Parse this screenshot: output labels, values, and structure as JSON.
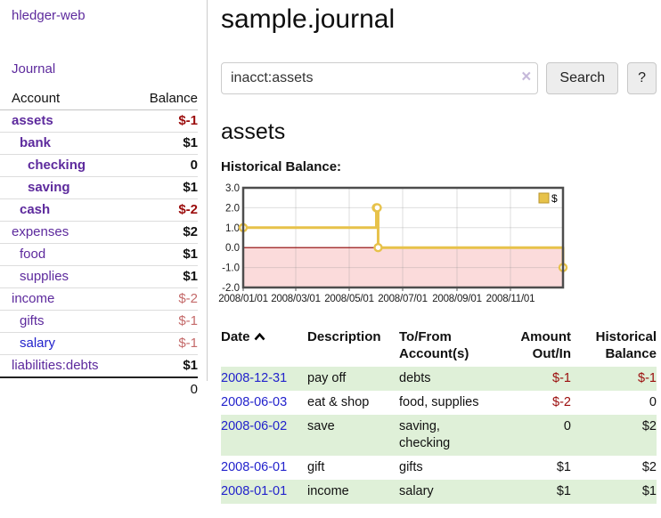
{
  "sidebar": {
    "brand": "hledger-web",
    "journal_label": "Journal",
    "accounts_table": {
      "headers": {
        "account": "Account",
        "balance": "Balance"
      },
      "rows": [
        {
          "name": "assets",
          "depth": 1,
          "bold": true,
          "balance": "$-1",
          "balance_style": "neg",
          "link": "purple"
        },
        {
          "name": "bank",
          "depth": 2,
          "bold": true,
          "balance": "$1",
          "balance_style": "",
          "link": "purple"
        },
        {
          "name": "checking",
          "depth": 3,
          "bold": true,
          "balance": "0",
          "balance_style": "",
          "link": "purple"
        },
        {
          "name": "saving",
          "depth": 3,
          "bold": true,
          "balance": "$1",
          "balance_style": "",
          "link": "purple"
        },
        {
          "name": "cash",
          "depth": 2,
          "bold": true,
          "balance": "$-2",
          "balance_style": "neg",
          "link": "purple"
        },
        {
          "name": "expenses",
          "depth": 1,
          "bold": false,
          "balance": "$2",
          "balance_style": "",
          "link": "purple"
        },
        {
          "name": "food",
          "depth": 2,
          "bold": false,
          "balance": "$1",
          "balance_style": "",
          "link": "purple"
        },
        {
          "name": "supplies",
          "depth": 2,
          "bold": false,
          "balance": "$1",
          "balance_style": "",
          "link": "purple"
        },
        {
          "name": "income",
          "depth": 1,
          "bold": false,
          "balance": "$-2",
          "balance_style": "neg-dim",
          "link": "purple"
        },
        {
          "name": "gifts",
          "depth": 2,
          "bold": false,
          "balance": "$-1",
          "balance_style": "neg-dim",
          "link": "purple"
        },
        {
          "name": "salary",
          "depth": 2,
          "bold": false,
          "balance": "$-1",
          "balance_style": "neg-dim",
          "link": "blue"
        },
        {
          "name": "liabilities:debts",
          "depth": 1,
          "bold": false,
          "balance": "$1",
          "balance_style": "",
          "link": "purple"
        }
      ],
      "total": "0"
    }
  },
  "main": {
    "title": "sample.journal",
    "search": {
      "value": "inacct:assets",
      "clear_icon": "×",
      "button_label": "Search",
      "help_label": "?"
    },
    "account_heading": "assets",
    "chart_label": "Historical Balance:"
  },
  "chart_data": {
    "type": "line",
    "title": "Historical Balance",
    "series": [
      {
        "name": "$",
        "color": "#e7c24a",
        "step": true,
        "points": [
          [
            "2008-01-01",
            1
          ],
          [
            "2008-06-01",
            2
          ],
          [
            "2008-06-02",
            2
          ],
          [
            "2008-06-03",
            0
          ],
          [
            "2008-12-31",
            -1
          ]
        ]
      }
    ],
    "x_domain": [
      "2008-01-01",
      "2008-12-31"
    ],
    "x_ticks": [
      {
        "date": "2008-01-01",
        "label": "2008/01/01"
      },
      {
        "date": "2008-03-01",
        "label": "2008/03/01"
      },
      {
        "date": "2008-05-01",
        "label": "2008/05/01"
      },
      {
        "date": "2008-07-01",
        "label": "2008/07/01"
      },
      {
        "date": "2008-09-01",
        "label": "2008/09/01"
      },
      {
        "date": "2008-11-01",
        "label": "2008/11/01"
      }
    ],
    "y_ticks": [
      {
        "value": 3,
        "label": "3.0"
      },
      {
        "value": 2,
        "label": "2.0"
      },
      {
        "value": 1,
        "label": "1.0"
      },
      {
        "value": 0,
        "label": "0.0"
      },
      {
        "value": -1,
        "label": "-1.0"
      },
      {
        "value": -2,
        "label": "-2.0"
      }
    ],
    "ylim": [
      -2,
      3
    ],
    "grid": true,
    "legend": {
      "position": "top-right",
      "items": [
        {
          "label": "$",
          "swatch_color": "#e7c24a"
        }
      ]
    },
    "negative_region_color": "#fbdbdb",
    "zero_line_color": "#8b0000"
  },
  "register": {
    "headers": [
      "Date",
      "Description",
      "To/From Account(s)",
      "Amount Out/In",
      "Historical Balance"
    ],
    "rows": [
      {
        "date": "2008-12-31",
        "description": "pay off",
        "accounts": "debts",
        "amount": "$-1",
        "amount_neg": true,
        "balance": "$-1",
        "balance_neg": true,
        "shaded": true
      },
      {
        "date": "2008-06-03",
        "description": "eat & shop",
        "accounts": "food, supplies",
        "amount": "$-2",
        "amount_neg": true,
        "balance": "0",
        "balance_neg": false,
        "shaded": false
      },
      {
        "date": "2008-06-02",
        "description": "save",
        "accounts": "saving, checking",
        "amount": "0",
        "amount_neg": false,
        "balance": "$2",
        "balance_neg": false,
        "shaded": true
      },
      {
        "date": "2008-06-01",
        "description": "gift",
        "accounts": "gifts",
        "amount": "$1",
        "amount_neg": false,
        "balance": "$2",
        "balance_neg": false,
        "shaded": false
      },
      {
        "date": "2008-01-01",
        "description": "income",
        "accounts": "salary",
        "amount": "$1",
        "amount_neg": false,
        "balance": "$1",
        "balance_neg": false,
        "shaded": true
      }
    ]
  },
  "colors": {
    "link_purple": "#5d2a9d",
    "link_blue": "#2222cc",
    "negative_strong": "#9b0c0c",
    "negative_dim": "#c46a6a",
    "row_stripe_green": "#dff0d8",
    "chart_line_gold": "#e7c24a",
    "chart_negative_pink": "#fbdbdb",
    "chart_zero_line": "#8b0000"
  }
}
